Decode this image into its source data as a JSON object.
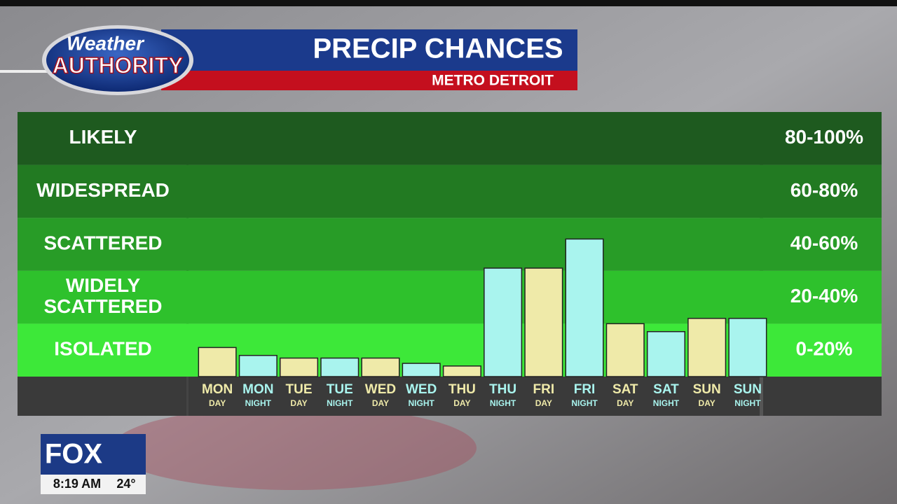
{
  "header": {
    "logo_top": "Weather",
    "logo_bottom": "AUTHORITY"
  },
  "chart_data": {
    "type": "bar",
    "title": "PRECIP CHANCES",
    "subtitle": "METRO DETROIT",
    "categories": [
      [
        "MON",
        "DAY"
      ],
      [
        "MON",
        "NIGHT"
      ],
      [
        "TUE",
        "DAY"
      ],
      [
        "TUE",
        "NIGHT"
      ],
      [
        "WED",
        "DAY"
      ],
      [
        "WED",
        "NIGHT"
      ],
      [
        "THU",
        "DAY"
      ],
      [
        "THU",
        "NIGHT"
      ],
      [
        "FRI",
        "DAY"
      ],
      [
        "FRI",
        "NIGHT"
      ],
      [
        "SAT",
        "DAY"
      ],
      [
        "SAT",
        "NIGHT"
      ],
      [
        "SUN",
        "DAY"
      ],
      [
        "SUN",
        "NIGHT"
      ]
    ],
    "values": [
      11,
      8,
      7,
      7,
      7,
      5,
      4,
      41,
      41,
      52,
      20,
      17,
      22,
      22
    ],
    "colors": [
      "#efeaa9",
      "#a9f4ee",
      "#efeaa9",
      "#a9f4ee",
      "#efeaa9",
      "#a9f4ee",
      "#efeaa9",
      "#a9f4ee",
      "#efeaa9",
      "#a9f4ee",
      "#efeaa9",
      "#a9f4ee",
      "#efeaa9",
      "#a9f4ee"
    ],
    "ylim": [
      0,
      100
    ],
    "bands": [
      {
        "name": [
          "LIKELY"
        ],
        "range_label": "80-100%",
        "from": 80,
        "to": 100,
        "color": "#1e5a1f"
      },
      {
        "name": [
          "WIDESPREAD"
        ],
        "range_label": "60-80%",
        "from": 60,
        "to": 80,
        "color": "#227a22"
      },
      {
        "name": [
          "SCATTERED"
        ],
        "range_label": "40-60%",
        "from": 40,
        "to": 60,
        "color": "#289c27"
      },
      {
        "name": [
          "WIDELY",
          "SCATTERED"
        ],
        "range_label": "20-40%",
        "from": 20,
        "to": 40,
        "color": "#2ec12c"
      },
      {
        "name": [
          "ISOLATED"
        ],
        "range_label": "0-20%",
        "from": 0,
        "to": 20,
        "color": "#3de839"
      }
    ]
  },
  "footer": {
    "station": "FOX",
    "time": "8:19 AM",
    "temperature": "24°"
  }
}
